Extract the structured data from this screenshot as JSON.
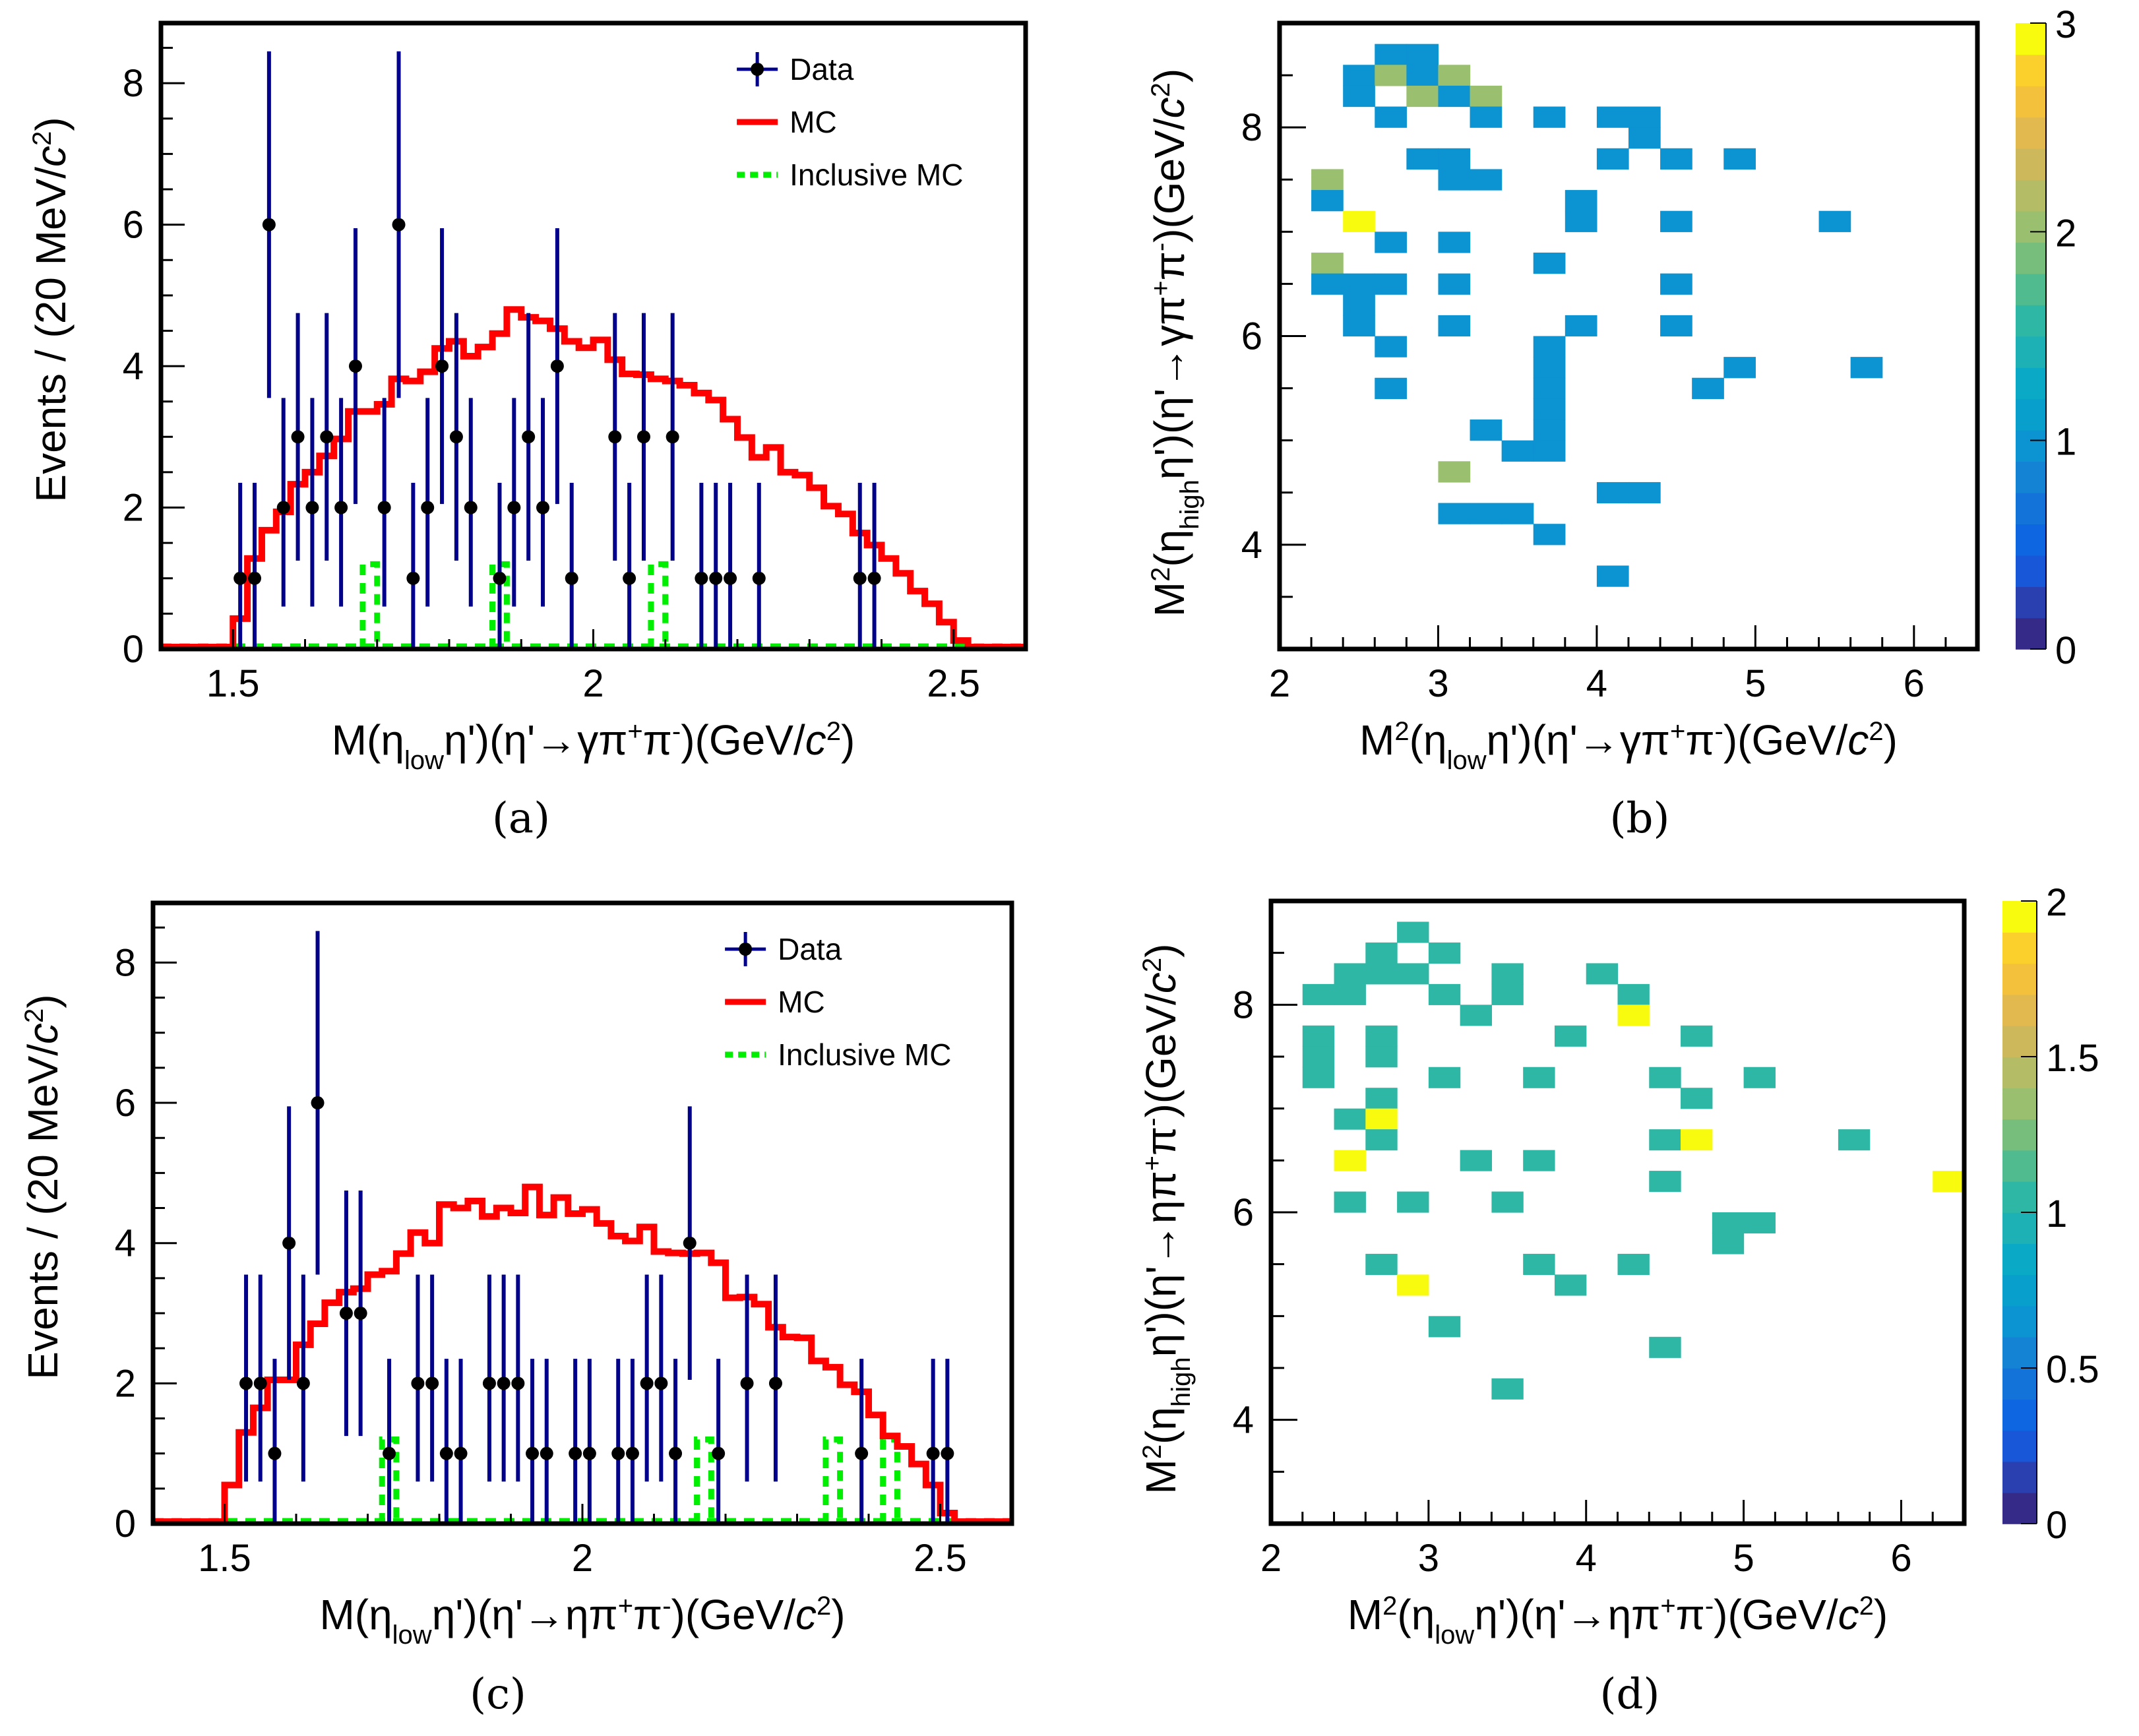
{
  "chart_data": [
    {
      "id": "a",
      "type": "histogram",
      "caption": "(a)",
      "xlabel": "M(η_low η')(η'→γπ⁺π⁻)(GeV/c²)",
      "xlabel_parts": {
        "pre": "M(η",
        "sub": "low",
        "mid": "η')(η'→γπ",
        "sup1": "+",
        "mid2": "π",
        "sup2": "-",
        "post": ")(GeV/",
        "c": "c",
        "sup3": "2",
        "end": ")"
      },
      "ylabel": "Events / (20 MeV/c²)",
      "ylabel_parts": {
        "pre": "Events / (20 MeV/",
        "c": "c",
        "sup": "2",
        "end": ")"
      },
      "xlim": [
        1.4,
        2.6
      ],
      "ylim": [
        0,
        8.85
      ],
      "xticks": [
        1.5,
        2,
        2.5
      ],
      "xtick_labels": [
        "1.5",
        "2",
        "2.5"
      ],
      "yticks": [
        0,
        2,
        4,
        6,
        8
      ],
      "ytick_labels": [
        "0",
        "2",
        "4",
        "6",
        "8"
      ],
      "bin_width": 0.02,
      "legend": {
        "position": "top-right",
        "entries": [
          "Data",
          "MC",
          "Inclusive MC"
        ]
      },
      "series": [
        {
          "name": "Data",
          "kind": "points",
          "x": [
            1.51,
            1.53,
            1.55,
            1.57,
            1.59,
            1.61,
            1.63,
            1.65,
            1.67,
            1.71,
            1.73,
            1.75,
            1.77,
            1.79,
            1.81,
            1.83,
            1.87,
            1.89,
            1.91,
            1.93,
            1.95,
            1.97,
            2.03,
            2.05,
            2.07,
            2.11,
            2.15,
            2.17,
            2.19,
            2.23,
            2.37,
            2.39
          ],
          "y": [
            1,
            1,
            6,
            2,
            3,
            2,
            3,
            2,
            4,
            2,
            6,
            1,
            2,
            4,
            3,
            2,
            1,
            2,
            3,
            2,
            4,
            1,
            3,
            1,
            3,
            3,
            1,
            1,
            1,
            1,
            1,
            1
          ]
        },
        {
          "name": "MC",
          "kind": "step",
          "x_start": 1.5,
          "values": [
            0.43,
            1.28,
            1.68,
            1.94,
            2.33,
            2.5,
            2.73,
            2.97,
            3.36,
            3.36,
            3.46,
            3.82,
            3.79,
            3.92,
            4.25,
            4.35,
            4.14,
            4.27,
            4.46,
            4.8,
            4.69,
            4.64,
            4.53,
            4.35,
            4.26,
            4.37,
            4.09,
            3.89,
            3.88,
            3.82,
            3.79,
            3.73,
            3.62,
            3.52,
            3.25,
            2.99,
            2.71,
            2.85,
            2.5,
            2.46,
            2.28,
            2.02,
            1.91,
            1.64,
            1.47,
            1.28,
            1.07,
            0.82,
            0.64,
            0.38,
            0.12
          ]
        },
        {
          "name": "Inclusive MC",
          "kind": "step-bins",
          "bins": [
            [
              1.68,
              1.2
            ],
            [
              1.86,
              1.2
            ],
            [
              2.08,
              1.2
            ]
          ]
        }
      ],
      "colors": {
        "data": "#00008b",
        "mc": "#ff0000",
        "inclusive": "#00ee00"
      }
    },
    {
      "id": "b",
      "type": "heatmap",
      "caption": "(b)",
      "xlabel": "M²(η_low η')(η'→γπ⁺π⁻)(GeV/c²)",
      "xlabel_parts": {
        "pre": "M",
        "sup0": "2",
        "pre2": "(η",
        "sub": "low",
        "mid": "η')(η'→γπ",
        "sup1": "+",
        "mid2": "π",
        "sup2": "-",
        "post": ")(GeV/",
        "c": "c",
        "sup3": "2",
        "end": ")"
      },
      "ylabel": "M²(η_high η')(η'→γπ⁺π⁻)(GeV/c²)",
      "ylabel_parts": {
        "pre": "M",
        "sup0": "2",
        "pre2": "(η",
        "sub": "high",
        "mid": "η')(η'→γπ",
        "sup1": "+",
        "mid2": "π",
        "sup2": "-",
        "post": ")(GeV/",
        "c": "c",
        "sup3": "2",
        "end": ")"
      },
      "xlim": [
        2,
        6.4
      ],
      "ylim": [
        3,
        9
      ],
      "xticks": [
        2,
        3,
        4,
        5,
        6
      ],
      "xtick_labels": [
        "2",
        "3",
        "4",
        "5",
        "6"
      ],
      "yticks": [
        4,
        6,
        8
      ],
      "ytick_labels": [
        "4",
        "6",
        "8"
      ],
      "cell": 0.2,
      "zlim": [
        0,
        3
      ],
      "zticks": [
        0,
        1,
        2,
        3
      ],
      "ztick_labels": [
        "0",
        "1",
        "2",
        "3"
      ],
      "cells": [
        [
          2.6,
          8.6,
          1
        ],
        [
          2.8,
          8.6,
          1
        ],
        [
          2.4,
          8.4,
          1
        ],
        [
          2.6,
          8.4,
          2
        ],
        [
          2.8,
          8.4,
          1
        ],
        [
          3.0,
          8.4,
          2
        ],
        [
          2.4,
          8.2,
          1
        ],
        [
          2.8,
          8.2,
          2
        ],
        [
          3.0,
          8.2,
          1
        ],
        [
          3.2,
          8.2,
          2
        ],
        [
          2.6,
          8.0,
          1
        ],
        [
          3.2,
          8.0,
          1
        ],
        [
          3.6,
          8.0,
          1
        ],
        [
          4.0,
          8.0,
          1
        ],
        [
          4.2,
          8.0,
          1
        ],
        [
          4.2,
          7.8,
          1
        ],
        [
          2.8,
          7.6,
          1
        ],
        [
          3.0,
          7.6,
          1
        ],
        [
          4.0,
          7.6,
          1
        ],
        [
          4.4,
          7.6,
          1
        ],
        [
          4.8,
          7.6,
          1
        ],
        [
          2.2,
          7.4,
          2
        ],
        [
          3.0,
          7.4,
          1
        ],
        [
          3.2,
          7.4,
          1
        ],
        [
          2.2,
          7.2,
          1
        ],
        [
          3.8,
          7.2,
          1
        ],
        [
          2.4,
          7.0,
          3
        ],
        [
          3.8,
          7.0,
          1
        ],
        [
          4.4,
          7.0,
          1
        ],
        [
          5.4,
          7.0,
          1
        ],
        [
          2.6,
          6.8,
          1
        ],
        [
          3.0,
          6.8,
          1
        ],
        [
          2.2,
          6.6,
          2
        ],
        [
          3.6,
          6.6,
          1
        ],
        [
          2.2,
          6.4,
          1
        ],
        [
          2.4,
          6.4,
          1
        ],
        [
          2.6,
          6.4,
          1
        ],
        [
          3.0,
          6.4,
          1
        ],
        [
          4.4,
          6.4,
          1
        ],
        [
          2.4,
          6.2,
          1
        ],
        [
          2.4,
          6.0,
          1
        ],
        [
          3.0,
          6.0,
          1
        ],
        [
          3.8,
          6.0,
          1
        ],
        [
          4.4,
          6.0,
          1
        ],
        [
          2.6,
          5.8,
          1
        ],
        [
          3.6,
          5.8,
          1
        ],
        [
          3.6,
          5.6,
          1
        ],
        [
          4.8,
          5.6,
          1
        ],
        [
          5.6,
          5.6,
          1
        ],
        [
          2.6,
          5.4,
          1
        ],
        [
          3.6,
          5.4,
          1
        ],
        [
          4.6,
          5.4,
          1
        ],
        [
          3.6,
          5.2,
          1
        ],
        [
          3.2,
          5.0,
          1
        ],
        [
          3.6,
          5.0,
          1
        ],
        [
          3.4,
          4.8,
          1
        ],
        [
          3.6,
          4.8,
          1
        ],
        [
          3.0,
          4.6,
          2
        ],
        [
          4.0,
          4.4,
          1
        ],
        [
          4.2,
          4.4,
          1
        ],
        [
          3.0,
          4.2,
          1
        ],
        [
          3.2,
          4.2,
          1
        ],
        [
          3.4,
          4.2,
          1
        ],
        [
          3.6,
          4.0,
          1
        ],
        [
          4.0,
          3.6,
          1
        ]
      ]
    },
    {
      "id": "c",
      "type": "histogram",
      "caption": "(c)",
      "xlabel": "M(η_low η')(η'→ηπ⁺π⁻)(GeV/c²)",
      "xlabel_parts": {
        "pre": "M(η",
        "sub": "low",
        "mid": "η')(η'→ηπ",
        "sup1": "+",
        "mid2": "π",
        "sup2": "-",
        "post": ")(GeV/",
        "c": "c",
        "sup3": "2",
        "end": ")"
      },
      "ylabel": "Events / (20 MeV/c²)",
      "ylabel_parts": {
        "pre": "Events / (20 MeV/",
        "c": "c",
        "sup": "2",
        "end": ")"
      },
      "xlim": [
        1.4,
        2.6
      ],
      "ylim": [
        0,
        8.85
      ],
      "xticks": [
        1.5,
        2,
        2.5
      ],
      "xtick_labels": [
        "1.5",
        "2",
        "2.5"
      ],
      "yticks": [
        0,
        2,
        4,
        6,
        8
      ],
      "ytick_labels": [
        "0",
        "2",
        "4",
        "6",
        "8"
      ],
      "bin_width": 0.02,
      "legend": {
        "position": "top-right",
        "entries": [
          "Data",
          "MC",
          "Inclusive MC"
        ]
      },
      "series": [
        {
          "name": "Data",
          "kind": "points",
          "x": [
            1.53,
            1.55,
            1.57,
            1.59,
            1.61,
            1.63,
            1.67,
            1.69,
            1.73,
            1.77,
            1.79,
            1.81,
            1.83,
            1.87,
            1.89,
            1.91,
            1.93,
            1.95,
            1.99,
            2.01,
            2.05,
            2.07,
            2.09,
            2.11,
            2.13,
            2.15,
            2.19,
            2.23,
            2.27,
            2.39,
            2.49,
            2.51
          ],
          "y": [
            2,
            2,
            1,
            4,
            2,
            6,
            3,
            3,
            1,
            2,
            2,
            1,
            1,
            2,
            2,
            2,
            1,
            1,
            1,
            1,
            1,
            1,
            2,
            2,
            1,
            4,
            1,
            2,
            2,
            1,
            1,
            1
          ]
        },
        {
          "name": "MC",
          "kind": "step",
          "x_start": 1.5,
          "values": [
            0.55,
            1.3,
            1.65,
            2.05,
            2.05,
            2.55,
            2.85,
            3.15,
            3.3,
            3.35,
            3.55,
            3.6,
            3.85,
            4.15,
            4.0,
            4.55,
            4.5,
            4.6,
            4.38,
            4.5,
            4.43,
            4.8,
            4.4,
            4.65,
            4.42,
            4.48,
            4.28,
            4.1,
            4.03,
            4.23,
            3.88,
            3.86,
            3.85,
            3.86,
            3.72,
            3.22,
            3.23,
            3.13,
            2.8,
            2.66,
            2.65,
            2.32,
            2.23,
            1.98,
            1.88,
            1.55,
            1.25,
            1.1,
            0.85,
            0.55,
            0.15
          ]
        },
        {
          "name": "Inclusive MC",
          "kind": "step-bins",
          "bins": [
            [
              1.72,
              1.2
            ],
            [
              2.16,
              1.2
            ],
            [
              2.34,
              1.2
            ],
            [
              2.42,
              1.2
            ]
          ]
        }
      ],
      "colors": {
        "data": "#00008b",
        "mc": "#ff0000",
        "inclusive": "#00ee00"
      }
    },
    {
      "id": "d",
      "type": "heatmap",
      "caption": "(d)",
      "xlabel": "M²(η_low η')(η'→ηπ⁺π⁻)(GeV/c²)",
      "xlabel_parts": {
        "pre": "M",
        "sup0": "2",
        "pre2": "(η",
        "sub": "low",
        "mid": "η')(η'→ηπ",
        "sup1": "+",
        "mid2": "π",
        "sup2": "-",
        "post": ")(GeV/",
        "c": "c",
        "sup3": "2",
        "end": ")"
      },
      "ylabel": "M²(η_high η')(η'→ηπ⁺π⁻)(GeV/c²)",
      "ylabel_parts": {
        "pre": "M",
        "sup0": "2",
        "pre2": "(η",
        "sub": "high",
        "mid": "η')(η'→ηπ",
        "sup1": "+",
        "mid2": "π",
        "sup2": "-",
        "post": ")(GeV/",
        "c": "c",
        "sup3": "2",
        "end": ")"
      },
      "xlim": [
        2,
        6.4
      ],
      "ylim": [
        3,
        9
      ],
      "xticks": [
        2,
        3,
        4,
        5,
        6
      ],
      "xtick_labels": [
        "2",
        "3",
        "4",
        "5",
        "6"
      ],
      "yticks": [
        4,
        6,
        8
      ],
      "ytick_labels": [
        "4",
        "6",
        "8"
      ],
      "cell": 0.2,
      "zlim": [
        0,
        2
      ],
      "zticks": [
        0,
        0.5,
        1,
        1.5,
        2
      ],
      "ztick_labels": [
        "0",
        "0.5",
        "1",
        "1.5",
        "2"
      ],
      "cells": [
        [
          2.8,
          8.6,
          1
        ],
        [
          2.6,
          8.4,
          1
        ],
        [
          3.0,
          8.4,
          1
        ],
        [
          2.4,
          8.2,
          1
        ],
        [
          2.6,
          8.2,
          1
        ],
        [
          2.8,
          8.2,
          1
        ],
        [
          3.4,
          8.2,
          1
        ],
        [
          4.0,
          8.2,
          1
        ],
        [
          2.2,
          8.0,
          1
        ],
        [
          2.4,
          8.0,
          1
        ],
        [
          3.0,
          8.0,
          1
        ],
        [
          3.4,
          8.0,
          1
        ],
        [
          4.2,
          8.0,
          1
        ],
        [
          3.2,
          7.8,
          1
        ],
        [
          4.2,
          7.8,
          2
        ],
        [
          2.2,
          7.6,
          1
        ],
        [
          2.6,
          7.6,
          1
        ],
        [
          3.8,
          7.6,
          1
        ],
        [
          4.6,
          7.6,
          1
        ],
        [
          2.2,
          7.4,
          1
        ],
        [
          2.6,
          7.4,
          1
        ],
        [
          2.2,
          7.2,
          1
        ],
        [
          3.0,
          7.2,
          1
        ],
        [
          3.6,
          7.2,
          1
        ],
        [
          4.4,
          7.2,
          1
        ],
        [
          5.0,
          7.2,
          1
        ],
        [
          2.6,
          7.0,
          1
        ],
        [
          4.6,
          7.0,
          1
        ],
        [
          2.4,
          6.8,
          1
        ],
        [
          2.6,
          6.8,
          2
        ],
        [
          2.6,
          6.6,
          1
        ],
        [
          4.4,
          6.6,
          1
        ],
        [
          4.6,
          6.6,
          2
        ],
        [
          5.6,
          6.6,
          1
        ],
        [
          2.4,
          6.4,
          2
        ],
        [
          3.2,
          6.4,
          1
        ],
        [
          3.6,
          6.4,
          1
        ],
        [
          4.4,
          6.2,
          1
        ],
        [
          6.2,
          6.2,
          2
        ],
        [
          2.4,
          6.0,
          1
        ],
        [
          2.8,
          6.0,
          1
        ],
        [
          3.4,
          6.0,
          1
        ],
        [
          4.8,
          5.8,
          1
        ],
        [
          5.0,
          5.8,
          1
        ],
        [
          4.8,
          5.6,
          1
        ],
        [
          2.6,
          5.4,
          1
        ],
        [
          3.6,
          5.4,
          1
        ],
        [
          4.2,
          5.4,
          1
        ],
        [
          2.8,
          5.2,
          2
        ],
        [
          3.8,
          5.2,
          1
        ],
        [
          3.0,
          4.8,
          1
        ],
        [
          4.4,
          4.6,
          1
        ],
        [
          3.4,
          4.2,
          1
        ]
      ]
    }
  ],
  "palette": [
    "#352a87",
    "#2a3fb0",
    "#1858d8",
    "#0e66e0",
    "#1373d8",
    "#1483d4",
    "#0c93d2",
    "#099fcd",
    "#0aaac6",
    "#1db1b6",
    "#2eb7a4",
    "#50bb8f",
    "#77be7d",
    "#99bf6f",
    "#b4bd65",
    "#cdb95b",
    "#e1b94f",
    "#f3c13b",
    "#fcd02c",
    "#f9fb0e"
  ]
}
